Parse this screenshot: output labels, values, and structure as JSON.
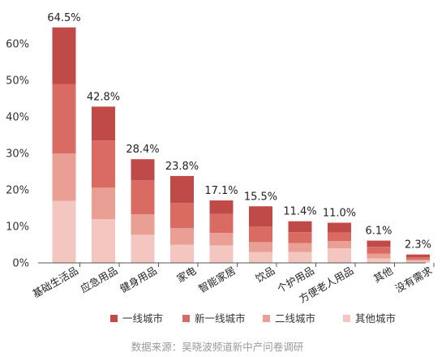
{
  "chart_data": {
    "type": "bar",
    "stacked": true,
    "categories": [
      "基础生活品",
      "应急用品",
      "健身用品",
      "家电",
      "智能家居",
      "饮品",
      "个护用品",
      "方便老人用品",
      "其他",
      "没有需求"
    ],
    "totals": [
      "64.5%",
      "42.8%",
      "28.4%",
      "23.8%",
      "17.1%",
      "15.5%",
      "11.4%",
      "11.0%",
      "6.1%",
      "2.3%"
    ],
    "series": [
      {
        "name": "其他城市",
        "color": "#f4c6c0",
        "values": [
          17,
          12,
          7.7,
          5.0,
          4.8,
          3.0,
          3.0,
          4.0,
          1.2,
          0.5
        ]
      },
      {
        "name": "二线城市",
        "color": "#ea9f95",
        "values": [
          13,
          8.6,
          5.6,
          4.5,
          3.4,
          2.7,
          2.4,
          2.0,
          1.3,
          0.4
        ]
      },
      {
        "name": "新一线城市",
        "color": "#d96b63",
        "values": [
          19,
          12.9,
          9.3,
          6.9,
          5.2,
          4.3,
          3.0,
          2.3,
          1.9,
          0.6
        ]
      },
      {
        "name": "一线城市",
        "color": "#bf4a48",
        "values": [
          15.5,
          9.3,
          5.8,
          7.4,
          3.7,
          5.5,
          3.0,
          2.7,
          1.7,
          0.8
        ]
      }
    ],
    "legend_order": [
      "一线城市",
      "新一线城市",
      "二线城市",
      "其他城市"
    ],
    "yticks": [
      0,
      10,
      20,
      30,
      40,
      50,
      60
    ],
    "ytick_labels": [
      "0%",
      "10%",
      "20%",
      "30%",
      "40%",
      "50%",
      "60%"
    ],
    "ylim": [
      0,
      70
    ],
    "grid": false,
    "legend_position": "bottom",
    "source": "数据来源：吴晓波频道新中产问卷调研"
  }
}
